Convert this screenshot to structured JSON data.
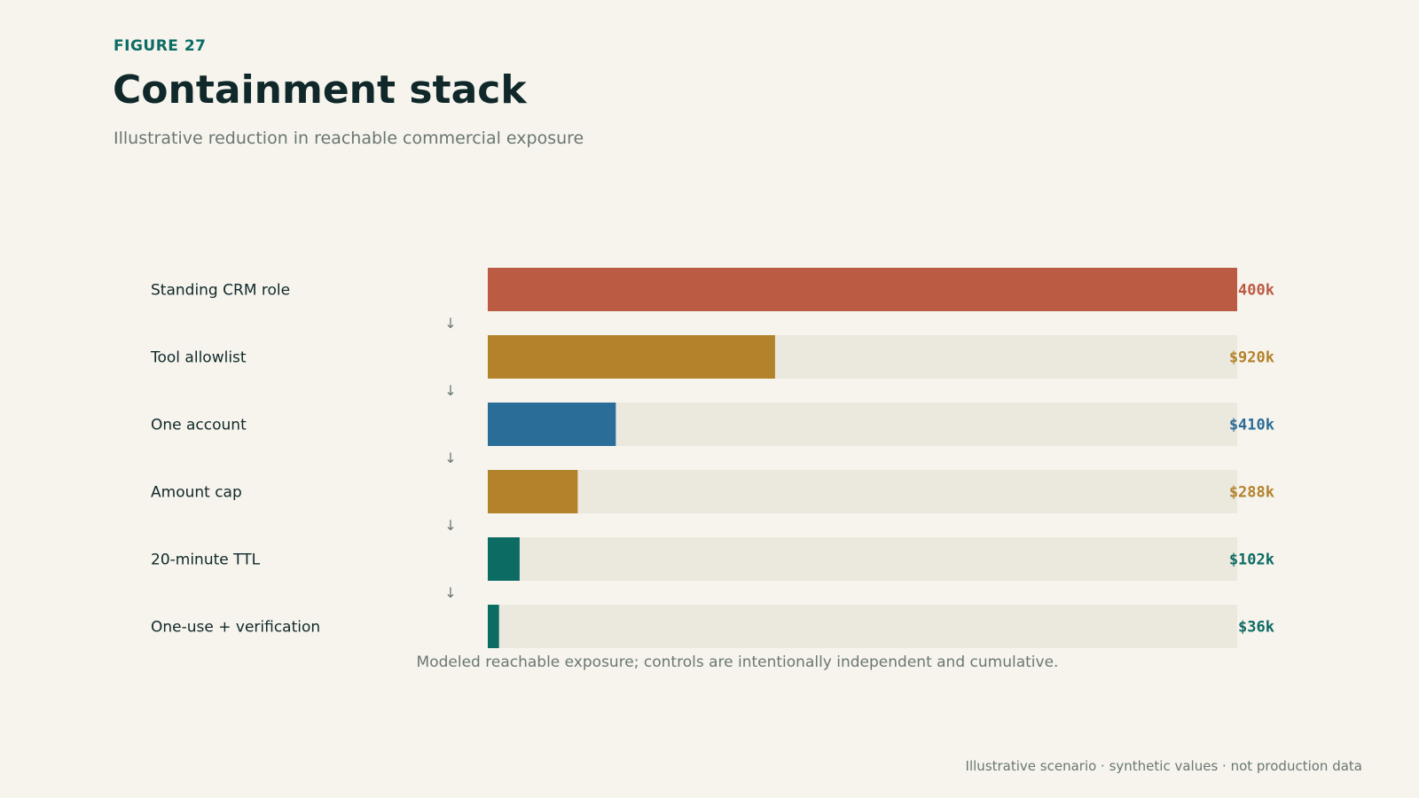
{
  "header": {
    "figure_label": "FIGURE 27",
    "title": "Containment stack",
    "subtitle": "Illustrative reduction in reachable commercial exposure"
  },
  "chart_data": {
    "type": "bar",
    "orientation": "horizontal",
    "categories": [
      "Standing CRM role",
      "Tool allowlist",
      "One account",
      "Amount cap",
      "20-minute TTL",
      "One-use + verification"
    ],
    "values": [
      2400,
      920,
      410,
      288,
      102,
      36
    ],
    "value_labels": [
      "$2,400k",
      "$920k",
      "$410k",
      "$288k",
      "$102k",
      "$36k"
    ],
    "value_unit": "$k",
    "xlim": [
      0,
      2400
    ],
    "colors": [
      "#bb5b43",
      "#b3832b",
      "#2b6d99",
      "#b3832b",
      "#0c6b63",
      "#0c6b63"
    ],
    "track_color": "#ebe8de",
    "step_arrow": "↓",
    "caption": "Modeled reachable exposure; controls are intentionally independent and cumulative.",
    "grid": false,
    "legend": "none"
  },
  "footer": {
    "note": "Illustrative scenario · synthetic values · not production data"
  }
}
